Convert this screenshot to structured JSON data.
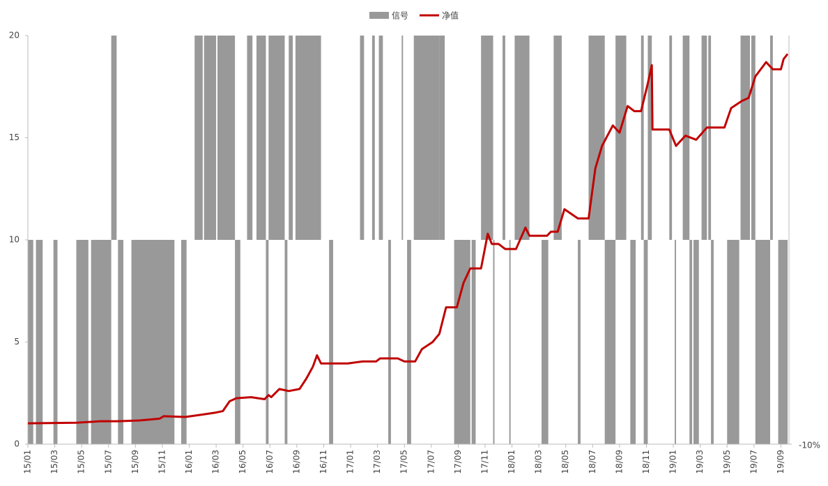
{
  "chart_data": {
    "type": "line",
    "xlim": [
      0,
      56.6
    ],
    "xticks": [
      {
        "value": 0,
        "label": "15/01"
      },
      {
        "value": 2,
        "label": "15/03"
      },
      {
        "value": 4,
        "label": "15/05"
      },
      {
        "value": 6,
        "label": "15/07"
      },
      {
        "value": 8,
        "label": "15/09"
      },
      {
        "value": 10,
        "label": "15/11"
      },
      {
        "value": 12,
        "label": "16/01"
      },
      {
        "value": 14,
        "label": "16/03"
      },
      {
        "value": 16,
        "label": "16/05"
      },
      {
        "value": 18,
        "label": "16/07"
      },
      {
        "value": 20,
        "label": "16/09"
      },
      {
        "value": 22,
        "label": "16/11"
      },
      {
        "value": 24,
        "label": "17/01"
      },
      {
        "value": 26,
        "label": "17/03"
      },
      {
        "value": 28,
        "label": "17/05"
      },
      {
        "value": 30,
        "label": "17/07"
      },
      {
        "value": 32,
        "label": "17/09"
      },
      {
        "value": 34,
        "label": "17/11"
      },
      {
        "value": 36,
        "label": "18/01"
      },
      {
        "value": 38,
        "label": "18/03"
      },
      {
        "value": 40,
        "label": "18/05"
      },
      {
        "value": 42,
        "label": "18/07"
      },
      {
        "value": 44,
        "label": "18/09"
      },
      {
        "value": 46,
        "label": "18/11"
      },
      {
        "value": 48,
        "label": "19/01"
      },
      {
        "value": 50,
        "label": "19/03"
      },
      {
        "value": 52,
        "label": "19/05"
      },
      {
        "value": 54,
        "label": "19/07"
      },
      {
        "value": 56,
        "label": "19/09"
      }
    ],
    "ylim": [
      0,
      20
    ],
    "yticks": [
      0,
      5,
      10,
      15,
      20
    ],
    "y2lim": [
      -10,
      10
    ],
    "y2ticks": [
      {
        "value": -10,
        "label": "-10%"
      }
    ],
    "signal": {
      "name": "信号",
      "color": "#999999",
      "axis": "y2",
      "x_start": [
        0.0,
        0.6,
        1.9,
        3.6,
        4.7,
        6.2,
        6.7,
        7.7,
        11.4,
        12.4,
        13.1,
        14.1,
        15.4,
        16.3,
        17.0,
        17.7,
        17.9,
        19.1,
        19.4,
        19.9,
        22.4,
        24.7,
        25.6,
        26.1,
        26.8,
        27.8,
        28.2,
        28.7,
        30.6,
        31.7,
        33.0,
        33.7,
        34.6,
        35.3,
        35.8,
        36.2,
        38.2,
        39.1,
        40.9,
        41.7,
        42.9,
        43.7,
        44.8,
        45.6,
        45.8,
        46.1,
        47.7,
        48.1,
        48.7,
        49.2,
        49.5,
        50.1,
        50.6,
        50.8,
        52.0,
        53.0,
        53.8,
        54.1,
        55.2,
        55.8
      ],
      "x_end": [
        0.4,
        1.1,
        2.2,
        4.5,
        6.2,
        6.6,
        7.1,
        10.9,
        11.8,
        13.0,
        14.0,
        15.4,
        15.8,
        16.7,
        17.7,
        17.9,
        19.1,
        19.3,
        19.7,
        21.8,
        22.7,
        25.0,
        25.8,
        26.4,
        27.0,
        27.9,
        28.5,
        30.6,
        31.0,
        32.9,
        33.3,
        34.6,
        34.7,
        35.5,
        35.9,
        37.3,
        38.7,
        39.7,
        41.1,
        42.9,
        43.7,
        44.5,
        45.2,
        45.8,
        46.1,
        46.4,
        47.9,
        48.2,
        49.2,
        49.4,
        49.9,
        50.5,
        50.8,
        51.0,
        52.9,
        53.7,
        54.1,
        55.2,
        55.4,
        56.5
      ],
      "values": [
        -10,
        -10,
        -10,
        -10,
        -10,
        10,
        -10,
        -10,
        -10,
        10,
        10,
        10,
        -10,
        10,
        10,
        -10,
        10,
        -10,
        10,
        10,
        -10,
        10,
        10,
        10,
        -10,
        10,
        -10,
        10,
        10,
        -10,
        -10,
        10,
        -10,
        10,
        -10,
        10,
        -10,
        10,
        -10,
        10,
        -10,
        10,
        -10,
        10,
        -10,
        10,
        10,
        -10,
        10,
        -10,
        -10,
        10,
        10,
        -10,
        -10,
        10,
        10,
        -10,
        10,
        -10
      ]
    },
    "series": [
      {
        "name": "净值",
        "color": "#c00000",
        "x": [
          0,
          1.0,
          3.6,
          5.4,
          6.7,
          8.3,
          9.8,
          10.1,
          11.7,
          13.0,
          14.0,
          14.5,
          15.0,
          15.5,
          16.6,
          17.6,
          17.9,
          18.1,
          18.7,
          19.4,
          20.2,
          20.7,
          21.2,
          21.5,
          21.8,
          23.8,
          24.9,
          25.9,
          26.2,
          27.5,
          28.0,
          28.8,
          29.3,
          30.1,
          30.6,
          31.1,
          31.9,
          32.4,
          32.9,
          33.7,
          34.2,
          34.5,
          35.0,
          35.5,
          36.3,
          37.0,
          37.3,
          38.6,
          38.9,
          39.4,
          39.9,
          40.9,
          41.7,
          42.2,
          42.7,
          43.5,
          44.0,
          44.6,
          45.1,
          45.6,
          46.1,
          46.4,
          46.45,
          47.7,
          48.2,
          48.9,
          49.7,
          50.5,
          51.8,
          52.3,
          53.1,
          53.6,
          54.1,
          54.9,
          55.4,
          56.0,
          56.2,
          56.5
        ],
        "values": [
          1.02,
          1.03,
          1.05,
          1.12,
          1.12,
          1.16,
          1.25,
          1.37,
          1.33,
          1.45,
          1.55,
          1.62,
          2.1,
          2.25,
          2.3,
          2.2,
          2.4,
          2.3,
          2.7,
          2.6,
          2.7,
          3.2,
          3.8,
          4.35,
          3.95,
          3.95,
          4.05,
          4.05,
          4.2,
          4.2,
          4.05,
          4.05,
          4.65,
          5.0,
          5.4,
          6.7,
          6.7,
          7.9,
          8.6,
          8.6,
          10.3,
          9.8,
          9.8,
          9.55,
          9.55,
          10.6,
          10.2,
          10.2,
          10.4,
          10.4,
          11.5,
          11.05,
          11.05,
          13.5,
          14.6,
          15.6,
          15.25,
          16.55,
          16.3,
          16.3,
          17.65,
          18.55,
          15.4,
          15.4,
          14.6,
          15.1,
          14.9,
          15.5,
          15.5,
          16.45,
          16.8,
          16.95,
          18.0,
          18.7,
          18.35,
          18.35,
          18.85,
          19.1
        ]
      }
    ]
  }
}
